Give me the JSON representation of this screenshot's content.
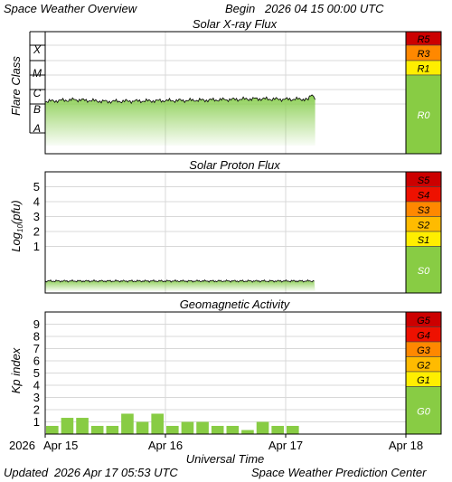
{
  "header": {
    "title": "Space Weather Overview",
    "begin_label": "Begin",
    "begin_time": "2026 04 15 00:00 UTC"
  },
  "footer": {
    "updated_label": "Updated",
    "updated_time": "2026 Apr 17 05:53 UTC",
    "source": "Space Weather Prediction Center"
  },
  "colors": {
    "extreme": "#cc0000",
    "severe": "#ee1100",
    "strong": "#ff8800",
    "moderate": "#ffbb00",
    "minor": "#ffee00",
    "quiet": "#88cc44",
    "flux_line": "#000000",
    "flux_fill": "#8ccf55",
    "kp_bar": "#88cc44",
    "grid": "#d8d8d8"
  },
  "chart_data": [
    {
      "type": "area",
      "title": "Solar X-ray Flux",
      "ylabel": "Flare Class",
      "y_scale": "log",
      "ylim": [
        1e-09,
        0.01
      ],
      "class_labels": [
        "A",
        "B",
        "C",
        "M",
        "X"
      ],
      "class_floors": [
        1e-08,
        1e-07,
        1e-06,
        1e-05,
        0.0001
      ],
      "x": [
        "2026-04-15 00:00",
        "2026-04-15 06:00",
        "2026-04-15 12:00",
        "2026-04-15 18:00",
        "2026-04-16 00:00",
        "2026-04-16 06:00",
        "2026-04-16 12:00",
        "2026-04-16 18:00",
        "2026-04-17 00:00",
        "2026-04-17 03:00",
        "2026-04-17 04:30",
        "2026-04-17 05:15",
        "2026-04-17 05:53"
      ],
      "series": [
        {
          "values": [
            1.5e-07,
            2e-07,
            1.5e-07,
            1.6e-07,
            1.7e-07,
            1.8e-07,
            2e-07,
            2.3e-07,
            2.1e-07,
            2.2e-07,
            2e-07,
            5.5e-07,
            2e-07
          ]
        }
      ],
      "scale": [
        {
          "label": "R5",
          "color": "#cc0000"
        },
        {
          "label": "R3",
          "color": "#ff8800"
        },
        {
          "label": "R1",
          "color": "#ffee00"
        },
        {
          "label": "R0",
          "color": "#88cc44"
        }
      ]
    },
    {
      "type": "area",
      "title": "Solar Proton Flux",
      "ylabel": "Log10(pfu)",
      "ylim": [
        -1,
        6
      ],
      "y_ticks": [
        1,
        2,
        3,
        4,
        5
      ],
      "x": [
        "2026-04-15 00:00",
        "2026-04-16 00:00",
        "2026-04-17 00:00",
        "2026-04-17 05:53"
      ],
      "series": [
        {
          "values": [
            -0.35,
            -0.35,
            -0.35,
            -0.35
          ]
        }
      ],
      "scale": [
        {
          "label": "S5",
          "color": "#cc0000"
        },
        {
          "label": "S4",
          "color": "#ee1100"
        },
        {
          "label": "S3",
          "color": "#ff8800"
        },
        {
          "label": "S2",
          "color": "#ffbb00"
        },
        {
          "label": "S1",
          "color": "#ffee00"
        },
        {
          "label": "S0",
          "color": "#88cc44"
        }
      ]
    },
    {
      "type": "bar",
      "title": "Geomagnetic Activity",
      "ylabel": "Kp index",
      "ylim": [
        0,
        10
      ],
      "y_ticks": [
        1,
        2,
        3,
        4,
        5,
        6,
        7,
        8,
        9
      ],
      "x": [
        "2026-04-15 00:00",
        "2026-04-15 03:00",
        "2026-04-15 06:00",
        "2026-04-15 09:00",
        "2026-04-15 12:00",
        "2026-04-15 15:00",
        "2026-04-15 18:00",
        "2026-04-15 21:00",
        "2026-04-16 00:00",
        "2026-04-16 03:00",
        "2026-04-16 06:00",
        "2026-04-16 09:00",
        "2026-04-16 12:00",
        "2026-04-16 15:00",
        "2026-04-16 18:00",
        "2026-04-16 21:00",
        "2026-04-17 00:00",
        "2026-04-17 03:00"
      ],
      "values": [
        0.67,
        1.33,
        1.33,
        0.67,
        0.67,
        1.67,
        1.0,
        1.67,
        0.67,
        1.0,
        1.0,
        0.67,
        0.67,
        0.33,
        1.0,
        0.67,
        0.67,
        0.0
      ],
      "scale": [
        {
          "label": "G5",
          "color": "#cc0000"
        },
        {
          "label": "G4",
          "color": "#ee1100"
        },
        {
          "label": "G3",
          "color": "#ff8800"
        },
        {
          "label": "G2",
          "color": "#ffbb00"
        },
        {
          "label": "G1",
          "color": "#ffee00"
        },
        {
          "label": "G0",
          "color": "#88cc44"
        }
      ]
    }
  ],
  "x_axis": {
    "label": "Universal Time",
    "ticks": [
      {
        "date": "2026-04-15",
        "label": "Apr 15"
      },
      {
        "date": "2026-04-16",
        "label": "Apr 16"
      },
      {
        "date": "2026-04-17",
        "label": "Apr 17"
      },
      {
        "date": "2026-04-18",
        "label": "Apr 18"
      }
    ],
    "year_label": "2026",
    "range": [
      "2026-04-15 00:00",
      "2026-04-18 00:00"
    ]
  }
}
